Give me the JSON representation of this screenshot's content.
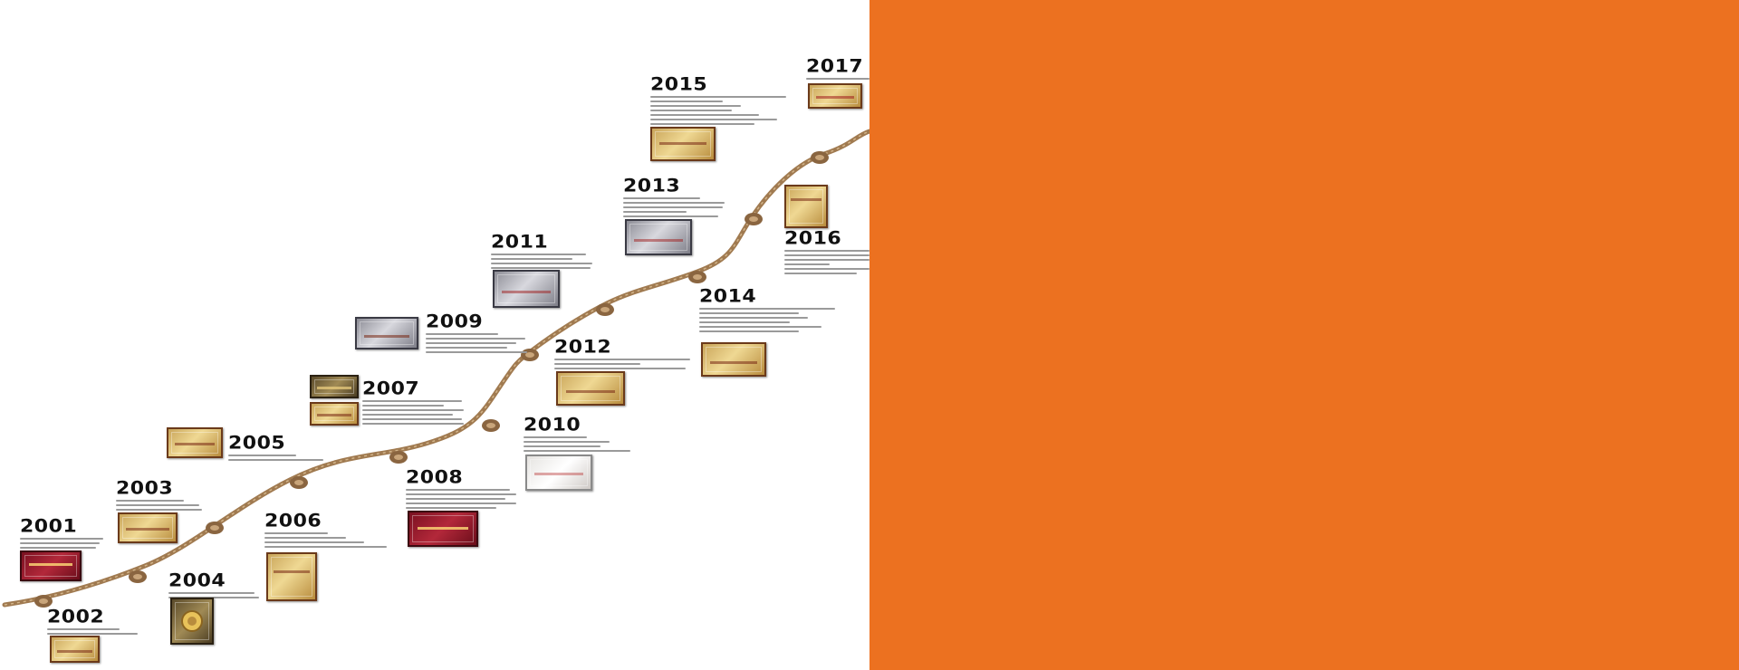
{
  "colors": {
    "accent_panel": "#ec7120",
    "rope": "#a07a50",
    "rope_dark": "#6e4f30"
  },
  "timeline": {
    "milestones": [
      {
        "year": "2001",
        "plaque_icon": "red-certificate-plaque"
      },
      {
        "year": "2002",
        "plaque_icon": "gold-certificate-plaque"
      },
      {
        "year": "2003",
        "plaque_icon": "gold-certificate-plaque"
      },
      {
        "year": "2004",
        "plaque_icon": "gold-medal-plaque"
      },
      {
        "year": "2005",
        "plaque_icon": "gold-certificate-plaque"
      },
      {
        "year": "2006",
        "plaque_icon": "gold-certificate-plaque"
      },
      {
        "year": "2007",
        "plaque_icon": "gold-certificate-plaque"
      },
      {
        "year": "2008",
        "plaque_icon": "red-certificate-plaque"
      },
      {
        "year": "2009",
        "plaque_icon": "silver-certificate-plaque"
      },
      {
        "year": "2010",
        "plaque_icon": "light-certificate-plaque"
      },
      {
        "year": "2011",
        "plaque_icon": "silver-certificate-plaque"
      },
      {
        "year": "2012",
        "plaque_icon": "gold-certificate-plaque"
      },
      {
        "year": "2013",
        "plaque_icon": "silver-certificate-plaque"
      },
      {
        "year": "2014",
        "plaque_icon": "gold-certificate-plaque"
      },
      {
        "year": "2015",
        "plaque_icon": "gold-certificate-plaque"
      },
      {
        "year": "2016",
        "plaque_icon": "gold-certificate-plaque"
      },
      {
        "year": "2017",
        "plaque_icon": "gold-certificate-plaque"
      }
    ]
  }
}
